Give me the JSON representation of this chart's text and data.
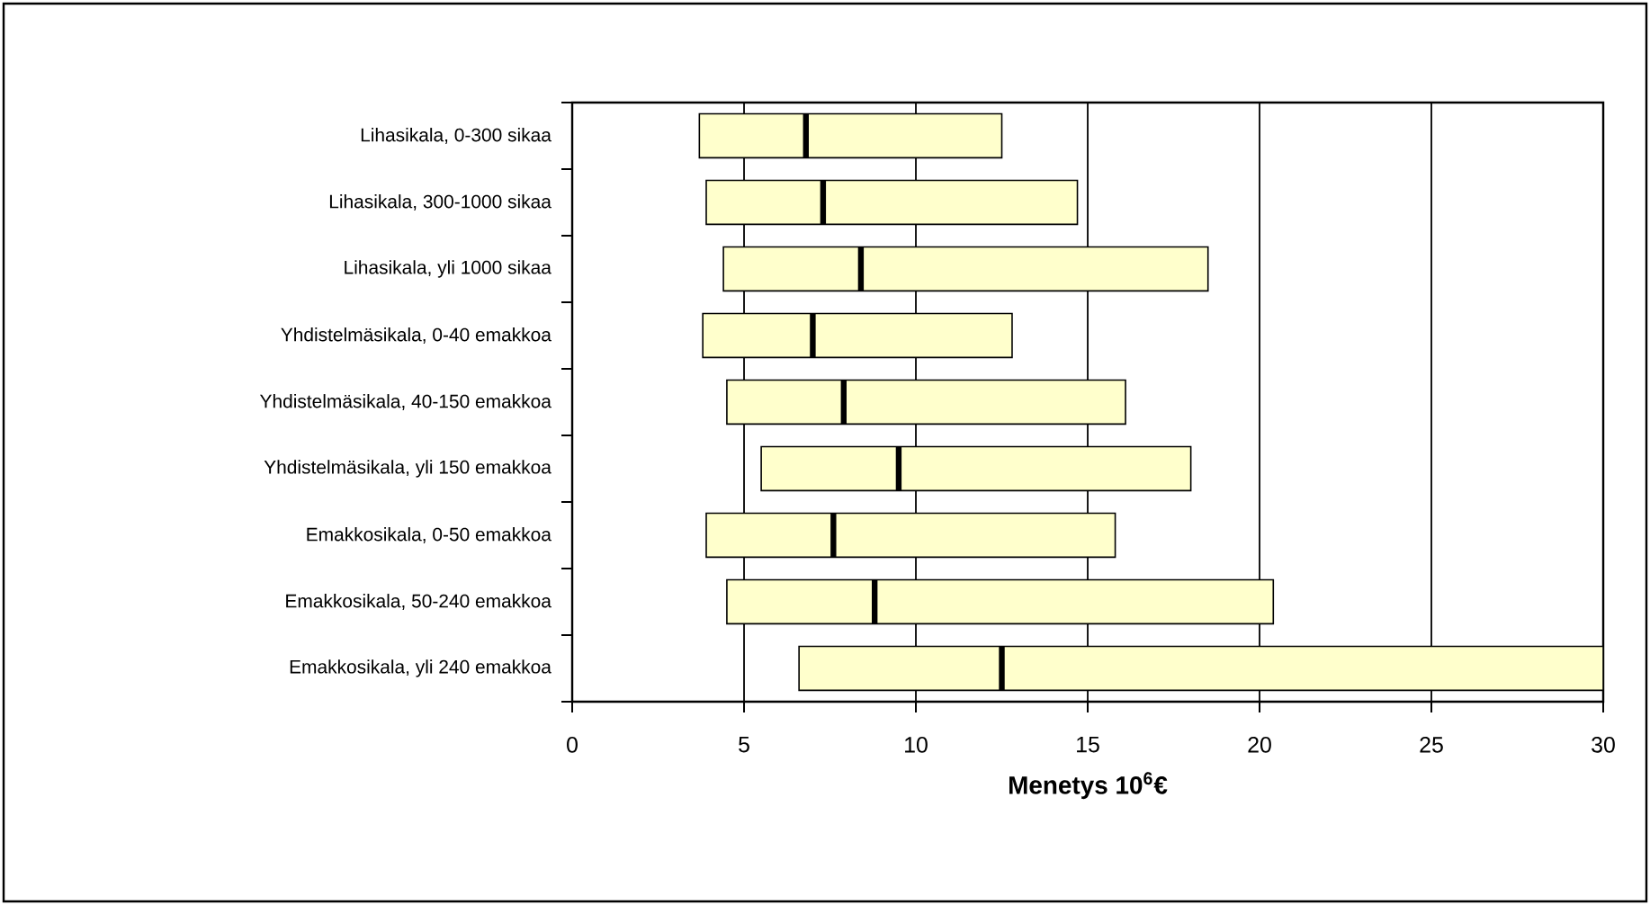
{
  "chart_data": {
    "type": "box",
    "orientation": "horizontal",
    "categories": [
      "Lihasikala, 0-300 sikaa",
      "Lihasikala, 300-1000 sikaa",
      "Lihasikala, yli 1000 sikaa",
      "Yhdistelmäsikala, 0-40 emakkoa",
      "Yhdistelmäsikala, 40-150 emakkoa",
      "Yhdistelmäsikala, yli 150 emakkoa",
      "Emakkosikala, 0-50 emakkoa",
      "Emakkosikala, 50-240 emakkoa",
      "Emakkosikala, yli 240 emakkoa"
    ],
    "series": [
      {
        "color": "#ffffcc",
        "boxes": [
          {
            "low": 3.7,
            "q1": 3.7,
            "median": 6.8,
            "q3": 12.5,
            "high": 12.5
          },
          {
            "low": 3.9,
            "q1": 3.9,
            "median": 7.3,
            "q3": 14.7,
            "high": 14.7
          },
          {
            "low": 4.4,
            "q1": 4.4,
            "median": 8.4,
            "q3": 18.5,
            "high": 18.5
          },
          {
            "low": 3.8,
            "q1": 3.8,
            "median": 7.0,
            "q3": 12.8,
            "high": 12.8
          },
          {
            "low": 4.5,
            "q1": 4.5,
            "median": 7.9,
            "q3": 16.1,
            "high": 16.1
          },
          {
            "low": 5.5,
            "q1": 5.5,
            "median": 9.5,
            "q3": 18.0,
            "high": 18.0
          },
          {
            "low": 3.9,
            "q1": 3.9,
            "median": 7.6,
            "q3": 15.8,
            "high": 15.8
          },
          {
            "low": 4.5,
            "q1": 4.5,
            "median": 8.8,
            "q3": 20.4,
            "high": 20.4
          },
          {
            "low": 6.6,
            "q1": 6.6,
            "median": 12.5,
            "q3": 30,
            "high": 30
          }
        ]
      }
    ],
    "xlabel": "Menetys 10$^{6}$€",
    "xlim": [
      0,
      30
    ],
    "xticks": [
      0,
      5,
      10,
      15,
      20,
      25,
      30
    ],
    "grid": "x"
  }
}
